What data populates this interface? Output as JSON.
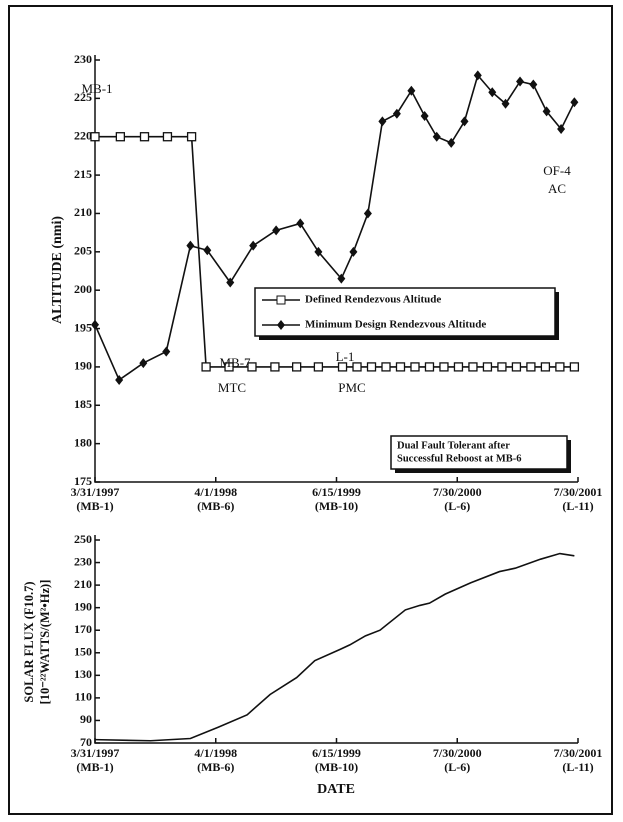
{
  "chart_data": [
    {
      "type": "line",
      "ylabel": "ALTITUDE (nmi)",
      "xlim": [
        0,
        4
      ],
      "ylim": [
        175,
        230
      ],
      "yticks": [
        175,
        180,
        185,
        190,
        195,
        200,
        205,
        210,
        215,
        220,
        225,
        230
      ],
      "xticks": [
        {
          "value": 0,
          "label": "3/31/1997"
        },
        {
          "value": 1,
          "label": "4/1/1998"
        },
        {
          "value": 2,
          "label": "6/15/1999"
        },
        {
          "value": 3,
          "label": "7/30/2000"
        },
        {
          "value": 4,
          "label": "7/30/2001"
        }
      ],
      "xtick_sublabels": [
        "(MB-1)",
        "(MB-6)",
        "(MB-10)",
        "(L-6)",
        "(L-11)"
      ],
      "series": [
        {
          "name": "Defined Rendezvous Altitude",
          "marker": "square",
          "color": "#111",
          "x": [
            0,
            0.21,
            0.41,
            0.6,
            0.8,
            0.92,
            1.11,
            1.3,
            1.49,
            1.67,
            1.85,
            2.05,
            2.17,
            2.29,
            2.41,
            2.53,
            2.65,
            2.77,
            2.89,
            3.01,
            3.13,
            3.25,
            3.37,
            3.49,
            3.61,
            3.73,
            3.85,
            3.97
          ],
          "values": [
            220,
            220,
            220,
            220,
            220,
            190,
            190,
            190,
            190,
            190,
            190,
            190,
            190,
            190,
            190,
            190,
            190,
            190,
            190,
            190,
            190,
            190,
            190,
            190,
            190,
            190,
            190,
            190
          ]
        },
        {
          "name": "Minimum Design Rendezvous Altitude",
          "marker": "diamond",
          "color": "#111",
          "x": [
            0,
            0.2,
            0.4,
            0.59,
            0.79,
            0.93,
            1.12,
            1.31,
            1.5,
            1.7,
            1.85,
            2.04,
            2.14,
            2.26,
            2.38,
            2.5,
            2.62,
            2.73,
            2.83,
            2.95,
            3.06,
            3.17,
            3.29,
            3.4,
            3.52,
            3.63,
            3.74,
            3.86,
            3.97
          ],
          "values": [
            195.5,
            188.3,
            190.5,
            192,
            205.8,
            205.2,
            201,
            205.8,
            207.8,
            208.7,
            205,
            201.5,
            205,
            210,
            222,
            223,
            226,
            222.7,
            220,
            219.2,
            222,
            228,
            225.8,
            224.3,
            227.2,
            226.8,
            223.3,
            221,
            224.5
          ]
        }
      ],
      "annotations": [
        "MB-1",
        "MB-7",
        "MTC",
        "L-1",
        "PMC",
        "OF-4",
        "AC"
      ],
      "note": [
        "Dual Fault Tolerant after",
        "Successful Reboost at MB-6"
      ]
    },
    {
      "type": "line",
      "ylabel": [
        "SOLAR FLUX (F10.7)",
        "[10⁻²²WATTS/(M²•Hz)]"
      ],
      "xlabel": "DATE",
      "xlim": [
        0,
        4
      ],
      "ylim": [
        70,
        250
      ],
      "yticks": [
        70,
        90,
        110,
        130,
        150,
        170,
        190,
        210,
        230,
        250
      ],
      "xticks": [
        {
          "value": 0,
          "label": "3/31/1997"
        },
        {
          "value": 1,
          "label": "4/1/1998"
        },
        {
          "value": 2,
          "label": "6/15/1999"
        },
        {
          "value": 3,
          "label": "7/30/2000"
        },
        {
          "value": 4,
          "label": "7/30/2001"
        }
      ],
      "xtick_sublabels": [
        "(MB-1)",
        "(MB-6)",
        "(MB-10)",
        "(L-6)",
        "(L-11)"
      ],
      "series": [
        {
          "color": "#111",
          "x": [
            0,
            0.46,
            0.79,
            1.02,
            1.26,
            1.45,
            1.67,
            1.82,
            2.03,
            2.11,
            2.24,
            2.36,
            2.57,
            2.69,
            2.77,
            2.9,
            3.11,
            3.35,
            3.48,
            3.69,
            3.85,
            3.97
          ],
          "values": [
            73,
            72,
            74,
            84,
            95,
            113,
            128,
            143,
            153,
            157,
            165,
            170,
            188,
            192,
            194,
            202,
            212,
            222,
            225,
            233,
            238,
            236
          ]
        }
      ]
    }
  ]
}
